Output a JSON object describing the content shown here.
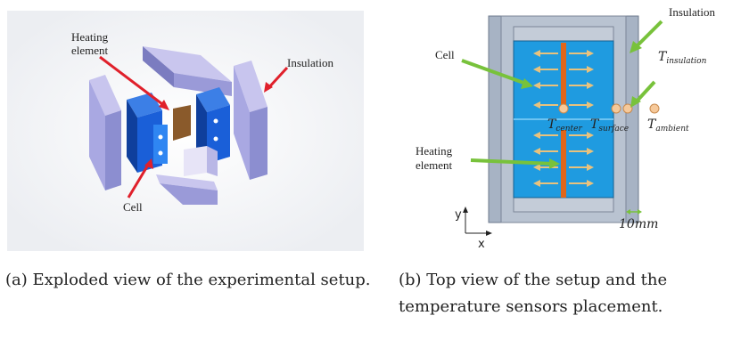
{
  "panel_a": {
    "labels": {
      "heating_element_line1": "Heating",
      "heating_element_line2": "element",
      "insulation": "Insulation",
      "cell": "Cell"
    },
    "caption": "(a) Exploded view of the experimental setup."
  },
  "panel_b": {
    "labels": {
      "insulation": "Insulation",
      "cell": "Cell",
      "heating_element_line1": "Heating",
      "heating_element_line2": "element",
      "t_center": "T",
      "t_center_sub": "center",
      "t_surface": "T",
      "t_surface_sub": "surface",
      "t_insulation": "T",
      "t_insulation_sub": "insulation",
      "t_ambient": "T",
      "t_ambient_sub": "ambient",
      "dimension": "10mm",
      "axis_x": "x",
      "axis_y": "y"
    },
    "caption": "(b) Top view of the setup and the temperature sensors placement."
  },
  "colors": {
    "insulation": "#a7b3c4",
    "cell": "#1f9be0",
    "heater": "#e0661a",
    "arrow": "#e9c27d",
    "pointer": "#78c23b",
    "sensor": "#f6c99a",
    "red_arrow": "#e0202b",
    "block_purple": "#8d8fd0",
    "block_blue": "#1a5fd8"
  }
}
